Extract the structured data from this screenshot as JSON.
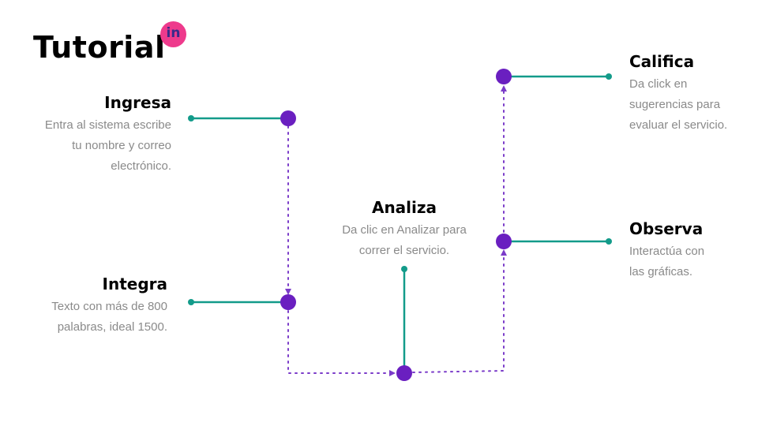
{
  "page": {
    "title": "Tutorial",
    "logo_text": "in"
  },
  "steps": {
    "ingresa": {
      "title": "Ingresa",
      "desc_lines": [
        "Entra al sistema escribe",
        "tu nombre y correo",
        "electrónico."
      ]
    },
    "integra": {
      "title": "Integra",
      "desc_lines": [
        "Texto con más de 800",
        "palabras, ideal 1500."
      ]
    },
    "analiza": {
      "title": "Analiza",
      "desc_lines": [
        "Da clic en Analizar para",
        "correr el servicio."
      ]
    },
    "observa": {
      "title": "Observa",
      "desc_lines": [
        "Interactúa con",
        "las gráficas."
      ]
    },
    "califica": {
      "title": "Califica",
      "desc_lines": [
        "Da click en",
        "sugerencias para",
        "evaluar el servicio."
      ]
    }
  },
  "colors": {
    "teal": "#139b8a",
    "purple": "#6a1fc0",
    "dotted": "#7b3cc9",
    "text_gray": "#8a8a8a",
    "logo_bg": "#ee3a8c"
  }
}
